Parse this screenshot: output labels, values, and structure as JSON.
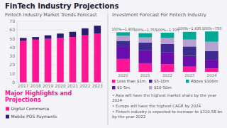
{
  "title": "FinTech Industry Projections",
  "chart_data": [
    {
      "type": "bar",
      "stacked": true,
      "title": "Fintech Industry Market Trends Forecast",
      "categories": [
        "2017",
        "2018",
        "2019",
        "2020",
        "2021",
        "2022",
        "2023"
      ],
      "series": [
        {
          "name": "Digital Commerce",
          "color": "#FF1493",
          "values": [
            48,
            49,
            50,
            51,
            52,
            54,
            56
          ]
        },
        {
          "name": "Mobile POS Payments",
          "color": "#2d1b6e",
          "values": [
            3,
            3,
            4,
            5,
            6,
            8,
            9
          ]
        }
      ],
      "ylim": [
        0,
        70
      ],
      "yticks": [
        0,
        10,
        20,
        30,
        40,
        50,
        60,
        70
      ],
      "grid": true,
      "annotations": [
        {
          "text": "Major Highlights and\nProjections",
          "color": "#FF1493"
        }
      ]
    },
    {
      "type": "bar",
      "stacked": true,
      "title": "Investment Forecast For Fintech Industry",
      "categories": [
        "2020",
        "2021",
        "2022",
        "2023",
        "2024"
      ],
      "series": [
        {
          "name": "Less than $1m",
          "color": "#FF1493",
          "values": [
            30,
            20,
            18,
            12,
            8
          ]
        },
        {
          "name": "$1-5m",
          "color": "#6a0dad",
          "values": [
            28,
            30,
            27,
            25,
            20
          ]
        },
        {
          "name": "$5-10m",
          "color": "#3d2b8e",
          "values": [
            14,
            18,
            20,
            22,
            20
          ]
        },
        {
          "name": "$10-50m",
          "color": "#b8a0d0",
          "values": [
            12,
            12,
            14,
            16,
            22
          ]
        },
        {
          "name": "Above $100m",
          "color": "#00a896",
          "values": [
            8,
            10,
            12,
            18,
            24
          ]
        }
      ],
      "ylim": [
        0,
        117.5
      ],
      "tick_labels": "x",
      "grid": false,
      "annotations": [
        {
          "text": "100%~1,400",
          "x": "2020"
        },
        {
          "text": "100%~1,755",
          "x": "2021"
        },
        {
          "text": "100%~1,705",
          "x": "2022"
        },
        {
          "text": "100%~1,435",
          "x": "2023"
        },
        {
          "text": "100%~750",
          "x": "2024"
        },
        {
          "text": "• Asia will have the highest market share by the year 2024"
        },
        {
          "text": "• Europe will have the highest CAGR by 2024"
        },
        {
          "text": "• Fintech industry is expected to increase to $310.5B bn by the year 2022"
        }
      ]
    }
  ]
}
